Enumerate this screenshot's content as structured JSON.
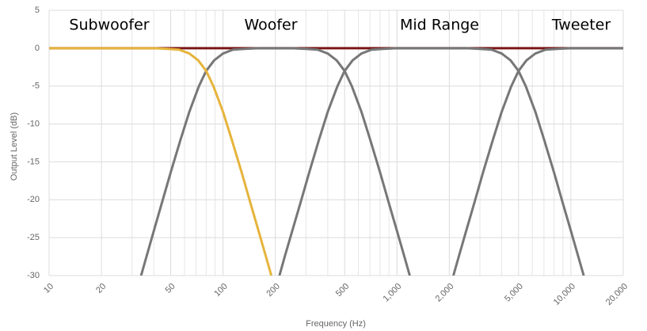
{
  "chart_data": {
    "type": "line",
    "x_label": "Frequency (Hz)",
    "y_label": "Output Level (dB)",
    "xscale": "log",
    "grid": true,
    "xlim": [
      10,
      20000
    ],
    "ylim": [
      -30,
      5
    ],
    "xticks": [
      10,
      20,
      50,
      100,
      200,
      500,
      {
        "value": 1000,
        "label": "1,000"
      },
      {
        "value": 2000,
        "label": "2,000"
      },
      {
        "value": 5000,
        "label": "5,000"
      },
      {
        "value": 10000,
        "label": "10,000"
      },
      {
        "value": 20000,
        "label": "20,000"
      }
    ],
    "x_minor_grid": [
      30,
      40,
      60,
      70,
      80,
      90,
      300,
      400,
      600,
      700,
      800,
      900,
      3000,
      4000,
      6000,
      7000,
      8000,
      9000
    ],
    "yticks": [
      5,
      0,
      -5,
      -10,
      -15,
      -20,
      -25,
      -30
    ],
    "annotations": [
      "Subwoofer",
      "Woofer",
      "Mid Range",
      "Tweeter"
    ],
    "series": [
      {
        "color": "#7a1616",
        "x": [
          10,
          20000
        ],
        "values": [
          0,
          0
        ]
      },
      {
        "color": "#777777",
        "x": [
          33.8,
          36.4,
          40,
          44.4,
          50,
          57.1,
          64,
          72.7,
          80,
          88.9,
          100,
          114,
          133,
          160,
          200,
          250,
          300,
          350,
          400,
          450,
          500,
          550,
          625,
          700,
          800,
          900,
          1000,
          1100,
          1185
        ],
        "values": [
          -30,
          -27.4,
          -24.1,
          -20.5,
          -16.4,
          -12,
          -8.4,
          -5,
          -3,
          -1.6,
          -0.7,
          -0.2,
          -0.1,
          0,
          0,
          0,
          -0.1,
          -0.2,
          -0.7,
          -1.6,
          -3,
          -5,
          -8.4,
          -12,
          -16.4,
          -20.5,
          -24.1,
          -27.4,
          -30
        ]
      },
      {
        "color": "#777777",
        "x": [
          211,
          227,
          250,
          278,
          313,
          357,
          400,
          455,
          500,
          556,
          625,
          714,
          833,
          1000,
          2000,
          2500,
          3000,
          3500,
          4000,
          4500,
          5000,
          5500,
          6250,
          7000,
          8000,
          9000,
          10000,
          11000,
          11850
        ],
        "values": [
          -30,
          -27.4,
          -24.1,
          -20.5,
          -16.4,
          -12,
          -8.4,
          -5,
          -3,
          -1.6,
          -0.7,
          -0.2,
          -0.1,
          0,
          0,
          0,
          -0.1,
          -0.2,
          -0.7,
          -1.6,
          -3,
          -5,
          -8.4,
          -12,
          -16.4,
          -20.5,
          -24.1,
          -27.4,
          -30
        ]
      },
      {
        "color": "#777777",
        "x": [
          2110,
          2273,
          2500,
          2778,
          3125,
          3571,
          4000,
          4545,
          5000,
          5556,
          6250,
          7143,
          8333,
          10000,
          20000
        ],
        "values": [
          -30,
          -27.4,
          -24.1,
          -20.5,
          -16.4,
          -12,
          -8.4,
          -5,
          -3,
          -1.6,
          -0.7,
          -0.2,
          -0.1,
          0,
          0
        ]
      },
      {
        "color": "#e6b43c",
        "x": [
          10,
          20,
          30,
          40,
          48,
          56,
          64,
          72,
          80,
          88,
          100,
          112,
          128,
          144,
          160,
          176,
          189.6
        ],
        "values": [
          0,
          0,
          0,
          0,
          -0.1,
          -0.2,
          -0.7,
          -1.6,
          -3,
          -5,
          -8.4,
          -12,
          -16.4,
          -20.5,
          -24.1,
          -27.4,
          -30
        ]
      }
    ]
  }
}
